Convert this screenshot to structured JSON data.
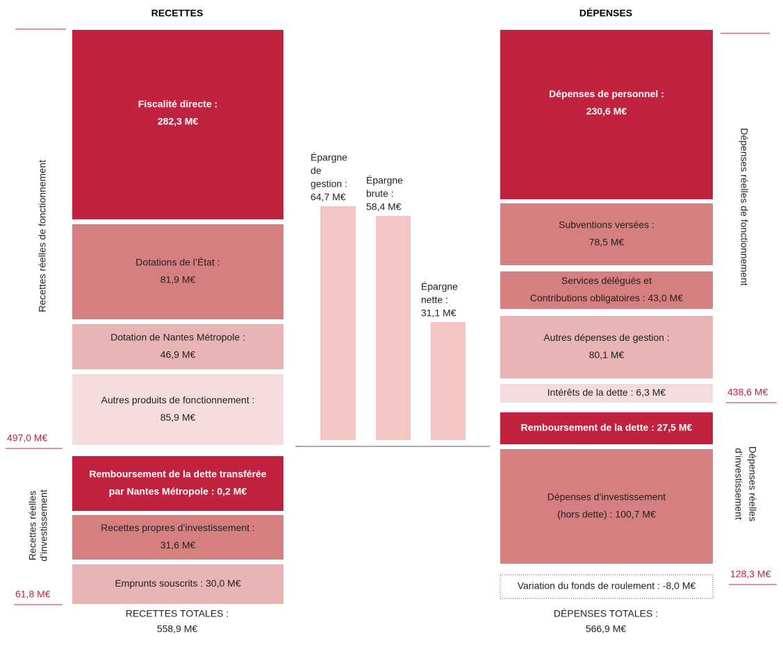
{
  "headers": {
    "recettes": "RECETTES",
    "depenses": "DÉPENSES"
  },
  "recettes": {
    "side_labels": [
      "Recettes réelles de fonctionnement",
      [
        "Recettes réelles",
        "d’investissement"
      ]
    ],
    "totals": [
      "497,0 M€",
      "61,8 M€"
    ],
    "blocks": [
      {
        "lines": [
          "Fiscalité directe :",
          "282,3 M€"
        ]
      },
      {
        "lines": [
          "Dotations de l’État :",
          "81,9 M€"
        ]
      },
      {
        "lines": [
          "Dotation de Nantes Métropole :",
          "46,9 M€"
        ]
      },
      {
        "lines": [
          "Autres produits de fonctionnement :",
          "85,9 M€"
        ]
      },
      {
        "lines": [
          "Remboursement de la dette transférée",
          "par Nantes Métropole : 0,2 M€"
        ]
      },
      {
        "lines": [
          "Recettes propres d’investissement :",
          "31,6 M€"
        ]
      },
      {
        "lines": [
          "Emprunts souscrits : 30,0 M€"
        ]
      }
    ],
    "grand_total": [
      "RECETTES TOTALES :",
      "558,9 M€"
    ]
  },
  "epargne": [
    {
      "lines": [
        "Épargne",
        "de",
        "gestion :",
        "64,7 M€"
      ]
    },
    {
      "lines": [
        "Épargne",
        "brute :",
        "58,4 M€"
      ]
    },
    {
      "lines": [
        "Épargne",
        "nette :",
        "31,1 M€"
      ]
    }
  ],
  "depenses": {
    "side_labels": [
      "Dépenses réelles de fonctionnement",
      [
        "Dépenses réelles",
        "d’investissement"
      ]
    ],
    "totals": [
      "438,6 M€",
      "128,3 M€"
    ],
    "blocks": [
      {
        "lines": [
          "Dépenses de personnel :",
          "230,6 M€"
        ]
      },
      {
        "lines": [
          "Subventions versées :",
          "78,5 M€"
        ]
      },
      {
        "lines": [
          "Services délégués et",
          "Contributions obligatoires : 43,0 M€"
        ]
      },
      {
        "lines": [
          "Autres dépenses de gestion :",
          "80,1 M€"
        ]
      },
      {
        "lines": [
          "Intérêts de la dette : 6,3 M€"
        ]
      },
      {
        "lines": [
          "Remboursement de la dette : 27,5 M€"
        ]
      },
      {
        "lines": [
          "Dépenses d’investissement",
          "(hors dette) : 100,7 M€"
        ]
      },
      {
        "lines": [
          "Variation du fonds de roulement : -8,0 M€"
        ]
      }
    ],
    "grand_total": [
      "DÉPENSES TOTALES :",
      "566,9 M€"
    ]
  }
}
